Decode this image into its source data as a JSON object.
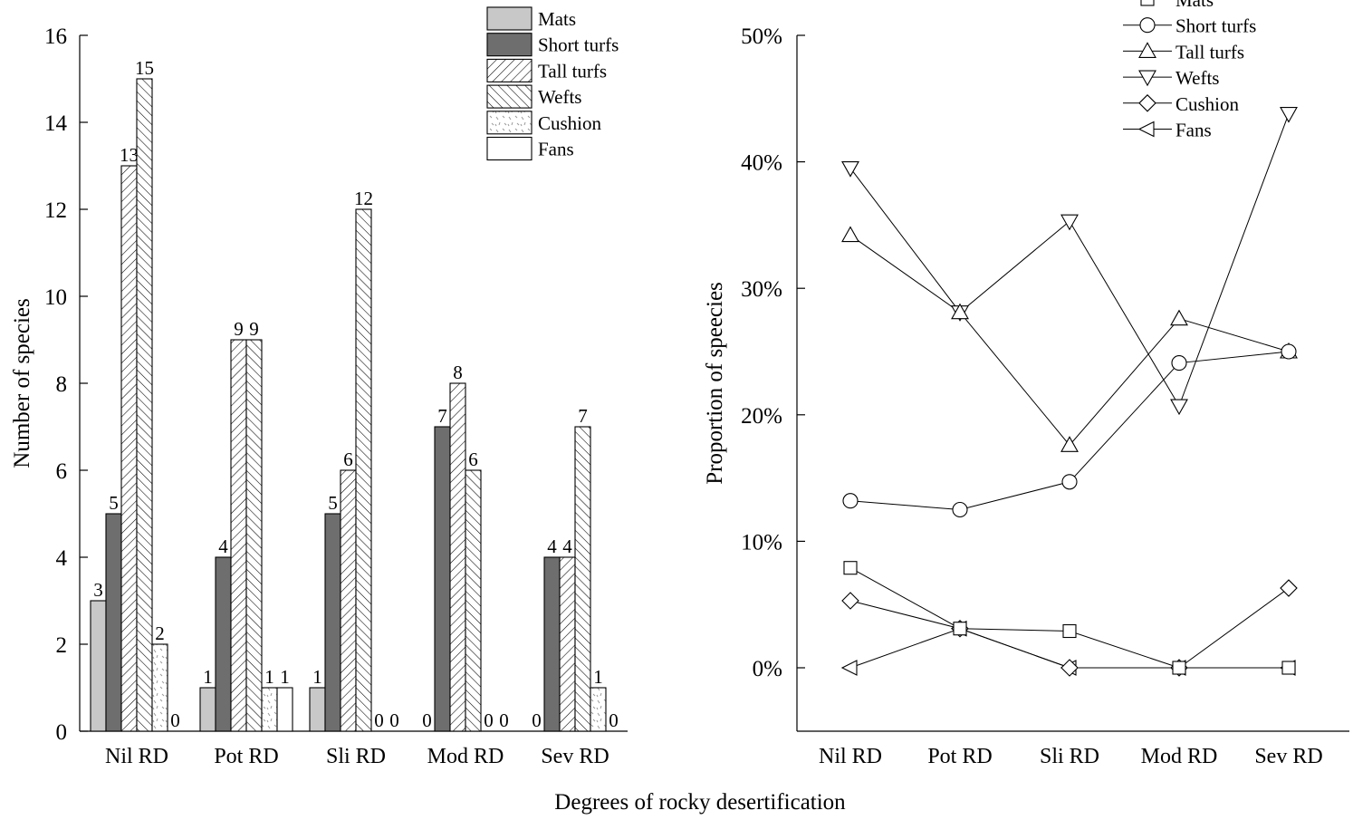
{
  "figure": {
    "xlabel": "Degrees of rocky desertification"
  },
  "chart_data": [
    {
      "type": "bar",
      "title": "",
      "xlabel": "",
      "ylabel": "Number of species",
      "ylim": [
        0,
        16
      ],
      "yticks": [
        "0",
        "2",
        "4",
        "6",
        "8",
        "10",
        "12",
        "14",
        "16"
      ],
      "categories": [
        "Nil RD",
        "Pot RD",
        "Sli RD",
        "Mod RD",
        "Sev RD"
      ],
      "legend_position": "top",
      "series": [
        {
          "name": "Mats",
          "values": [
            3,
            1,
            1,
            0,
            0
          ],
          "value_labels": [
            "3",
            "1",
            "1",
            "0",
            "0"
          ],
          "fill": "#c8c8c8"
        },
        {
          "name": "Short turfs",
          "values": [
            5,
            4,
            5,
            7,
            4
          ],
          "value_labels": [
            "5",
            "4",
            "5",
            "7",
            "4"
          ],
          "fill": "#6e6e6e"
        },
        {
          "name": "Tall turfs",
          "values": [
            13,
            9,
            6,
            8,
            4
          ],
          "value_labels": [
            "13",
            "9",
            "6",
            "8",
            "4"
          ],
          "fill": "hatch-right"
        },
        {
          "name": "Wefts",
          "values": [
            15,
            9,
            12,
            6,
            7
          ],
          "value_labels": [
            "15",
            "9",
            "12",
            "6",
            "7"
          ],
          "fill": "hatch-left"
        },
        {
          "name": "Cushion",
          "values": [
            2,
            1,
            0,
            0,
            1
          ],
          "value_labels": [
            "2",
            "1",
            "0",
            "0",
            "1"
          ],
          "fill": "speckle"
        },
        {
          "name": "Fans",
          "values": [
            0,
            1,
            0,
            0,
            0
          ],
          "value_labels": [
            "0",
            "1",
            "0",
            "0",
            "0"
          ],
          "fill": "#ffffff"
        }
      ]
    },
    {
      "type": "line",
      "title": "",
      "xlabel": "",
      "ylabel": "Proportion of speecies",
      "ylim": [
        -5,
        50
      ],
      "yticks": [
        "0%",
        "10%",
        "20%",
        "30%",
        "40%",
        "50%"
      ],
      "categories": [
        "Nil RD",
        "Pot RD",
        "Sli RD",
        "Mod RD",
        "Sev RD"
      ],
      "legend_position": "top-right",
      "series": [
        {
          "name": "Mats",
          "marker": "square",
          "values": [
            7.9,
            3.1,
            2.9,
            0,
            0
          ]
        },
        {
          "name": "Short turfs",
          "marker": "circle",
          "values": [
            13.2,
            12.5,
            14.7,
            24.1,
            25.0
          ]
        },
        {
          "name": "Tall turfs",
          "marker": "triangle-up",
          "values": [
            34.2,
            28.1,
            17.6,
            27.6,
            25.0
          ]
        },
        {
          "name": "Wefts",
          "marker": "triangle-down",
          "values": [
            39.5,
            28.1,
            35.3,
            20.7,
            43.8
          ]
        },
        {
          "name": "Cushion",
          "marker": "diamond",
          "values": [
            5.3,
            3.1,
            0,
            0,
            6.3
          ]
        },
        {
          "name": "Fans",
          "marker": "triangle-left",
          "values": [
            0,
            3.1,
            0,
            0,
            0
          ]
        }
      ]
    }
  ]
}
